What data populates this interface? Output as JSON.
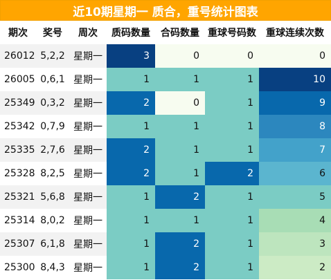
{
  "title": "近10期星期一 质合，重号统计图表",
  "headers": [
    "期次",
    "奖号",
    "周次",
    "质码数量",
    "合码数量",
    "重球号码数",
    "重球连续次数"
  ],
  "rows": [
    {
      "period": "26012",
      "numbers": "5,2,2",
      "weekday": "星期一",
      "prime": "3",
      "composite": "0",
      "repeat": "0",
      "streak": "0"
    },
    {
      "period": "26005",
      "numbers": "0,6,1",
      "weekday": "星期一",
      "prime": "1",
      "composite": "1",
      "repeat": "1",
      "streak": "10"
    },
    {
      "period": "25349",
      "numbers": "0,3,2",
      "weekday": "星期一",
      "prime": "2",
      "composite": "0",
      "repeat": "1",
      "streak": "9"
    },
    {
      "period": "25342",
      "numbers": "0,7,9",
      "weekday": "星期一",
      "prime": "1",
      "composite": "1",
      "repeat": "1",
      "streak": "8"
    },
    {
      "period": "25335",
      "numbers": "2,7,6",
      "weekday": "星期一",
      "prime": "2",
      "composite": "1",
      "repeat": "1",
      "streak": "7"
    },
    {
      "period": "25328",
      "numbers": "8,2,5",
      "weekday": "星期一",
      "prime": "2",
      "composite": "1",
      "repeat": "2",
      "streak": "6"
    },
    {
      "period": "25321",
      "numbers": "5,6,8",
      "weekday": "星期一",
      "prime": "1",
      "composite": "2",
      "repeat": "1",
      "streak": "5"
    },
    {
      "period": "25314",
      "numbers": "8,0,2",
      "weekday": "星期一",
      "prime": "1",
      "composite": "1",
      "repeat": "1",
      "streak": "4"
    },
    {
      "period": "25307",
      "numbers": "6,1,8",
      "weekday": "星期一",
      "prime": "1",
      "composite": "2",
      "repeat": "1",
      "streak": "3"
    },
    {
      "period": "25300",
      "numbers": "8,4,3",
      "weekday": "星期一",
      "prime": "1",
      "composite": "2",
      "repeat": "1",
      "streak": "2"
    }
  ],
  "colors": {
    "title_bg": "#FFA500",
    "small_count_scale": {
      "0": "#f7fcf0",
      "1": "#7bccc4",
      "2": "#0868ac",
      "3": "#084081"
    },
    "streak_scale": {
      "0": "#f7fcf0",
      "2": "#ccebc5",
      "3": "#bde5be",
      "4": "#a8ddb5",
      "5": "#7bccc4",
      "6": "#5bb5cf",
      "7": "#43a2ca",
      "8": "#2c87be",
      "9": "#0868ac",
      "10": "#084081"
    }
  }
}
